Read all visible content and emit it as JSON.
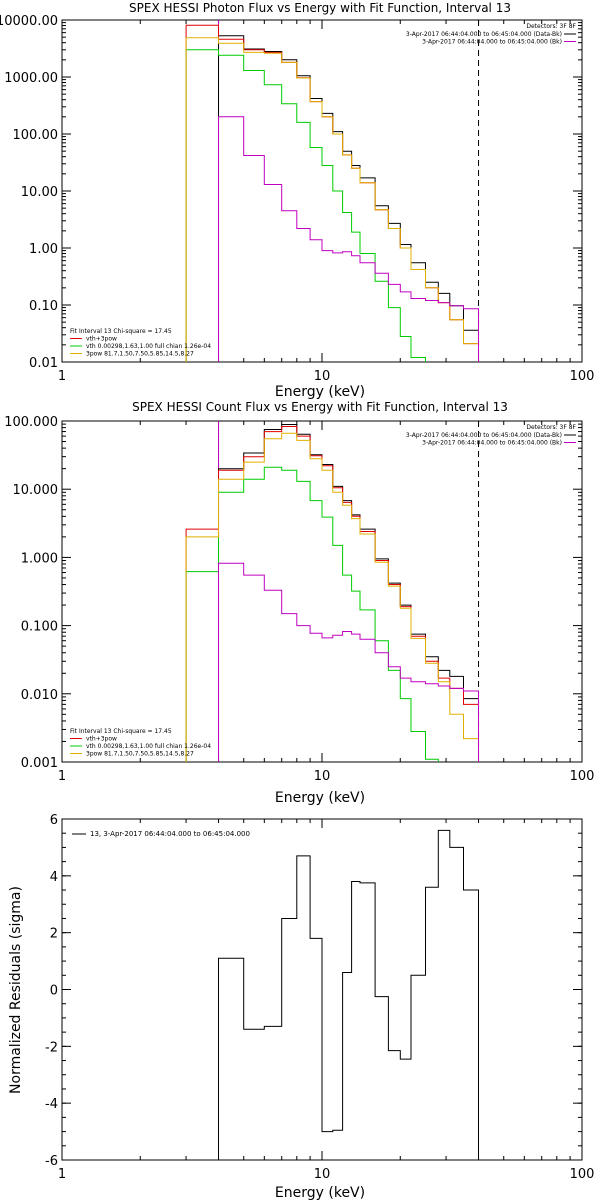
{
  "chart_data": [
    {
      "type": "line",
      "title": "SPEX HESSI Photon Flux vs Energy with Fit Function, Interval 13",
      "xlabel": "Energy (keV)",
      "ylabel": "",
      "xscale": "log",
      "yscale": "log",
      "xlim": [
        1,
        100
      ],
      "ylim": [
        0.01,
        10000
      ],
      "xticks": [
        {
          "v": 1,
          "label": "1"
        },
        {
          "v": 10,
          "label": "10"
        },
        {
          "v": 100,
          "label": "100"
        }
      ],
      "yticks": [
        {
          "v": 0.01,
          "label": "0.01"
        },
        {
          "v": 0.1,
          "label": "0.10"
        },
        {
          "v": 1,
          "label": "1.00"
        },
        {
          "v": 10,
          "label": "10.00"
        },
        {
          "v": 100,
          "label": "100.00"
        },
        {
          "v": 1000,
          "label": "1000.00"
        },
        {
          "v": 10000,
          "label": "10000.00"
        }
      ],
      "vlines": [
        {
          "x": 4,
          "style": "solid",
          "color": "#c000c0"
        },
        {
          "x": 40,
          "style": "dashed",
          "color": "#000000"
        }
      ],
      "top_legend": {
        "title": "Detectors: 3F 8F",
        "lines": [
          {
            "text": "3-Apr-2017 06:44:04.000 to 06:45:04.000 (Data-Bk)",
            "color": "#000000"
          },
          {
            "text": "3-Apr-2017 06:44:04.000 to 06:45:04.000 (Bk)",
            "color": "#c000c0"
          }
        ]
      },
      "bottom_legend": {
        "header": "Fit Interval 13   Chi-square = 17.45",
        "lines": [
          {
            "text": "vth+3pow",
            "color": "#e00000"
          },
          {
            "text": "vth 0.00298,1.63,1.00  full chian 1.26e-04",
            "color": "#00cc00"
          },
          {
            "text": "3pow 81.7,1.50,7.50,5.85,14.5,8.27",
            "color": "#e0b000"
          }
        ]
      },
      "edges": [
        3,
        4,
        5,
        6,
        7,
        8,
        9,
        10,
        11,
        12,
        13,
        14,
        16,
        18,
        20,
        22,
        25,
        28,
        31,
        35,
        40
      ],
      "series": [
        {
          "name": "Data-Bk",
          "color": "#000000",
          "values": [
            null,
            5300,
            3100,
            2800,
            2000,
            1050,
            420,
            230,
            110,
            50,
            28,
            17,
            5.5,
            2.7,
            1.15,
            0.55,
            0.25,
            0.16,
            0.097,
            0.036
          ]
        },
        {
          "name": "vth+3pow",
          "color": "#e00000",
          "values": [
            8100,
            4600,
            3000,
            2700,
            1800,
            970,
            370,
            200,
            100,
            43,
            25,
            14,
            4.7,
            2.2,
            1.0,
            0.42,
            0.2,
            0.11,
            0.055,
            0.021
          ]
        },
        {
          "name": "vth",
          "color": "#00cc00",
          "values": [
            3000,
            2400,
            1300,
            730,
            340,
            160,
            58,
            28,
            10,
            4.2,
            1.9,
            0.8,
            0.26,
            0.09,
            0.028,
            0.012,
            null,
            null,
            null,
            null
          ]
        },
        {
          "name": "3pow",
          "color": "#e0b000",
          "values": [
            4900,
            3900,
            2700,
            2600,
            1800,
            960,
            370,
            200,
            100,
            43,
            25,
            14,
            4.7,
            2.2,
            1.0,
            0.42,
            0.2,
            0.11,
            0.055,
            0.021
          ]
        },
        {
          "name": "Bk",
          "color": "#c000c0",
          "values": [
            null,
            200,
            42,
            13,
            4.5,
            2.2,
            1.4,
            0.9,
            0.82,
            0.86,
            0.73,
            0.55,
            0.36,
            0.23,
            0.17,
            0.13,
            0.12,
            0.11,
            0.097,
            0.086
          ]
        }
      ]
    },
    {
      "type": "line",
      "title": "SPEX HESSI Count Flux vs Energy with Fit Function, Interval 13",
      "xlabel": "Energy (keV)",
      "ylabel": "",
      "xscale": "log",
      "yscale": "log",
      "xlim": [
        1,
        100
      ],
      "ylim": [
        0.001,
        100
      ],
      "xticks": [
        {
          "v": 1,
          "label": "1"
        },
        {
          "v": 10,
          "label": "10"
        },
        {
          "v": 100,
          "label": "100"
        }
      ],
      "yticks": [
        {
          "v": 0.001,
          "label": "0.001"
        },
        {
          "v": 0.01,
          "label": "0.010"
        },
        {
          "v": 0.1,
          "label": "0.100"
        },
        {
          "v": 1,
          "label": "1.000"
        },
        {
          "v": 10,
          "label": "10.000"
        },
        {
          "v": 100,
          "label": "100.000"
        }
      ],
      "vlines": [
        {
          "x": 4,
          "style": "dotted",
          "color": "#000000"
        },
        {
          "x": 4,
          "style": "solid",
          "color": "#c000c0"
        },
        {
          "x": 40,
          "style": "dashed",
          "color": "#000000"
        }
      ],
      "top_legend": {
        "title": "Detectors: 3F 8F",
        "lines": [
          {
            "text": "3-Apr-2017 06:44:04.000 to 06:45:04.000 (Data-Bk)",
            "color": "#000000"
          },
          {
            "text": "3-Apr-2017 06:44:04.000 to 06:45:04.000 (Bk)",
            "color": "#c000c0"
          }
        ]
      },
      "bottom_legend": {
        "header": "Fit Interval 13   Chi-square = 17.45",
        "lines": [
          {
            "text": "vth+3pow",
            "color": "#e00000"
          },
          {
            "text": "vth 0.00298,1.63,1.00  full chian 1.26e-04",
            "color": "#00cc00"
          },
          {
            "text": "3pow 81.7,1.50,7.50,5.85,14.5,8.27",
            "color": "#e0b000"
          }
        ]
      },
      "edges": [
        3,
        4,
        5,
        6,
        7,
        8,
        9,
        10,
        11,
        12,
        13,
        14,
        16,
        18,
        20,
        22,
        25,
        28,
        31,
        35,
        40
      ],
      "series": [
        {
          "name": "Data-Bk",
          "color": "#000000",
          "values": [
            null,
            20,
            34,
            75,
            89,
            64,
            32,
            23,
            11,
            6.8,
            4.2,
            2.6,
            0.95,
            0.42,
            0.2,
            0.075,
            0.035,
            0.022,
            0.018,
            0.0085
          ]
        },
        {
          "name": "vth+3pow",
          "color": "#e00000",
          "values": [
            2.6,
            19,
            30,
            70,
            83,
            60,
            31,
            22,
            10.5,
            6.4,
            4.0,
            2.4,
            0.9,
            0.4,
            0.19,
            0.07,
            0.03,
            0.017,
            0.012,
            0.007
          ]
        },
        {
          "name": "vth",
          "color": "#00cc00",
          "values": [
            0.62,
            9,
            14,
            21,
            19,
            13,
            6.8,
            3.9,
            1.5,
            0.55,
            0.32,
            0.17,
            0.06,
            0.022,
            0.0085,
            0.0028,
            0.0011,
            null,
            null,
            null
          ]
        },
        {
          "name": "3pow",
          "color": "#e0b000",
          "values": [
            2.0,
            14,
            25,
            55,
            66,
            52,
            28,
            19,
            9,
            5.8,
            3.7,
            2.2,
            0.85,
            0.38,
            0.18,
            0.065,
            0.028,
            0.015,
            0.005,
            0.0022
          ]
        },
        {
          "name": "Bk",
          "color": "#c000c0",
          "values": [
            null,
            0.82,
            0.55,
            0.33,
            0.15,
            0.1,
            0.077,
            0.066,
            0.072,
            0.082,
            0.075,
            0.063,
            0.04,
            0.025,
            0.017,
            0.015,
            0.014,
            0.013,
            0.012,
            0.011
          ]
        }
      ]
    },
    {
      "type": "line",
      "title": "",
      "xlabel": "Energy (keV)",
      "ylabel": "Normalized Residuals (sigma)",
      "xscale": "log",
      "yscale": "linear",
      "xlim": [
        1,
        100
      ],
      "ylim": [
        -6,
        6
      ],
      "xticks": [
        {
          "v": 1,
          "label": "1"
        },
        {
          "v": 10,
          "label": "10"
        },
        {
          "v": 100,
          "label": "100"
        }
      ],
      "yticks": [
        {
          "v": -6,
          "label": "-6"
        },
        {
          "v": -4,
          "label": "-4"
        },
        {
          "v": -2,
          "label": "-2"
        },
        {
          "v": 0,
          "label": "0"
        },
        {
          "v": 2,
          "label": "2"
        },
        {
          "v": 4,
          "label": "4"
        },
        {
          "v": 6,
          "label": "6"
        }
      ],
      "legend_text": "13,  3-Apr-2017 06:44:04.000 to 06:45:04.000",
      "edges": [
        4,
        5,
        6,
        7,
        8,
        9,
        10,
        11,
        12,
        13,
        14,
        16,
        18,
        20,
        22,
        25,
        28,
        31,
        35,
        40
      ],
      "series": [
        {
          "name": "",
          "color": "#000000",
          "values": [
            1.1,
            -1.4,
            -1.3,
            2.5,
            4.7,
            1.8,
            -5.0,
            -4.95,
            0.6,
            3.8,
            3.75,
            -0.25,
            -2.15,
            -2.45,
            0.5,
            3.6,
            5.6,
            5.0,
            3.5
          ]
        }
      ]
    }
  ]
}
